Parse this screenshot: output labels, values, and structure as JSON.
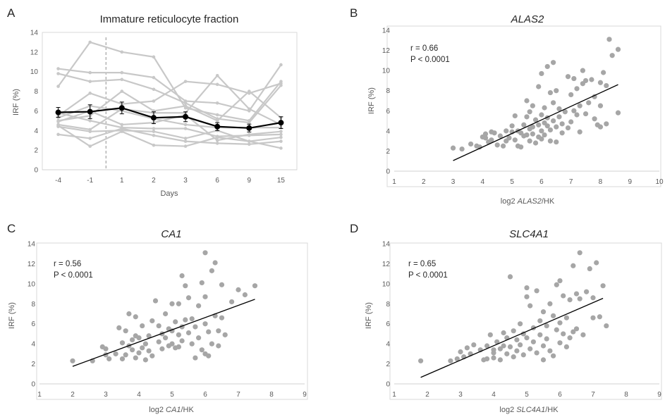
{
  "chart_data": [
    {
      "panel": "A",
      "type": "line",
      "title": "Immature reticulocyte fraction",
      "xlabel": "Days",
      "ylabel": "IRF (%)",
      "categories": [
        "-4",
        "-1",
        "1",
        "2",
        "3",
        "6",
        "9",
        "15"
      ],
      "ylim": [
        0,
        14
      ],
      "yticks": [
        0,
        2,
        4,
        6,
        8,
        10,
        12,
        14
      ],
      "vertical_dashed_line_between": [
        "-1",
        "1"
      ],
      "individual_series_color": "#c8c8c8",
      "individual_series": [
        [
          10.3,
          9.9,
          9.9,
          9.4,
          7.0,
          6.8,
          6.0,
          10.7
        ],
        [
          8.5,
          13.0,
          12.0,
          11.5,
          6.3,
          5.6,
          5.0,
          9.0
        ],
        [
          9.8,
          9.0,
          9.2,
          8.2,
          6.8,
          5.2,
          4.8,
          8.6
        ],
        [
          5.5,
          7.8,
          6.7,
          7.0,
          9.0,
          8.7,
          7.8,
          8.8
        ],
        [
          5.0,
          5.5,
          8.0,
          6.0,
          6.5,
          5.0,
          8.0,
          5.3
        ],
        [
          4.6,
          4.1,
          6.2,
          5.8,
          5.8,
          9.6,
          6.2,
          4.6
        ],
        [
          5.3,
          6.5,
          6.0,
          5.2,
          4.6,
          4.3,
          4.3,
          4.3
        ],
        [
          4.9,
          6.0,
          4.6,
          4.8,
          5.6,
          3.0,
          3.6,
          3.9
        ],
        [
          5.8,
          5.0,
          4.3,
          4.2,
          4.2,
          3.4,
          3.5,
          3.6
        ],
        [
          4.4,
          3.9,
          4.0,
          3.9,
          3.2,
          4.0,
          2.9,
          3.3
        ],
        [
          3.6,
          3.2,
          4.2,
          3.5,
          2.9,
          2.7,
          2.6,
          2.9
        ],
        [
          4.5,
          2.4,
          3.9,
          2.5,
          2.4,
          3.3,
          2.9,
          2.2
        ]
      ],
      "mean_series": {
        "color": "#000000",
        "values": [
          5.85,
          5.92,
          6.3,
          5.3,
          5.4,
          4.4,
          4.25,
          4.8
        ],
        "error": [
          0.5,
          0.7,
          0.6,
          0.6,
          0.5,
          0.4,
          0.4,
          0.6
        ]
      }
    },
    {
      "panel": "B",
      "type": "scatter",
      "title": "ALAS2",
      "title_italic": true,
      "xlabel_prefix": "log2 ",
      "xlabel_gene": "ALAS2",
      "xlabel_suffix": "/HK",
      "ylabel": "IRF (%)",
      "xlim": [
        1,
        10
      ],
      "xticks": [
        1,
        2,
        3,
        4,
        5,
        6,
        7,
        8,
        9,
        10
      ],
      "ylim": [
        0,
        14
      ],
      "yticks": [
        0,
        2,
        4,
        6,
        8,
        10,
        12,
        14
      ],
      "stat_r": "r = 0.66",
      "stat_p": "P < 0.0001",
      "point_color": "#a6a6a6",
      "fit_line": [
        [
          3.0,
          1.05
        ],
        [
          8.6,
          8.6
        ]
      ],
      "points": [
        [
          3.0,
          2.3
        ],
        [
          3.3,
          2.2
        ],
        [
          3.6,
          2.7
        ],
        [
          3.8,
          2.5
        ],
        [
          3.9,
          2.4
        ],
        [
          4.0,
          3.4
        ],
        [
          4.1,
          3.3
        ],
        [
          4.1,
          3.7
        ],
        [
          4.2,
          2.9
        ],
        [
          4.3,
          3.1
        ],
        [
          4.3,
          3.9
        ],
        [
          4.4,
          3.8
        ],
        [
          4.5,
          2.6
        ],
        [
          4.6,
          3.5
        ],
        [
          4.7,
          2.5
        ],
        [
          4.8,
          4.0
        ],
        [
          4.8,
          3.0
        ],
        [
          4.9,
          3.3
        ],
        [
          5.0,
          3.9
        ],
        [
          5.0,
          4.5
        ],
        [
          5.1,
          3.1
        ],
        [
          5.1,
          5.5
        ],
        [
          5.2,
          2.5
        ],
        [
          5.2,
          4.0
        ],
        [
          5.3,
          2.4
        ],
        [
          5.3,
          3.8
        ],
        [
          5.4,
          3.5
        ],
        [
          5.4,
          4.6
        ],
        [
          5.5,
          3.6
        ],
        [
          5.5,
          5.4
        ],
        [
          5.5,
          7.0
        ],
        [
          5.6,
          4.2
        ],
        [
          5.6,
          5.9
        ],
        [
          5.6,
          3.0
        ],
        [
          5.7,
          6.5
        ],
        [
          5.7,
          3.7
        ],
        [
          5.7,
          4.4
        ],
        [
          5.8,
          5.1
        ],
        [
          5.8,
          2.8
        ],
        [
          5.9,
          8.4
        ],
        [
          5.9,
          4.6
        ],
        [
          5.9,
          3.4
        ],
        [
          6.0,
          9.7
        ],
        [
          6.0,
          5.6
        ],
        [
          6.0,
          4.0
        ],
        [
          6.0,
          3.2
        ],
        [
          6.1,
          6.3
        ],
        [
          6.1,
          4.8
        ],
        [
          6.1,
          3.6
        ],
        [
          6.2,
          10.4
        ],
        [
          6.2,
          5.3
        ],
        [
          6.2,
          4.5
        ],
        [
          6.3,
          7.8
        ],
        [
          6.3,
          4.1
        ],
        [
          6.3,
          3.0
        ],
        [
          6.4,
          10.8
        ],
        [
          6.4,
          6.8
        ],
        [
          6.4,
          5.0
        ],
        [
          6.5,
          8.0
        ],
        [
          6.5,
          4.4
        ],
        [
          6.5,
          2.9
        ],
        [
          6.6,
          6.2
        ],
        [
          6.6,
          5.4
        ],
        [
          6.7,
          4.7
        ],
        [
          6.7,
          3.8
        ],
        [
          6.8,
          5.9
        ],
        [
          6.9,
          9.4
        ],
        [
          6.9,
          4.3
        ],
        [
          7.0,
          7.6
        ],
        [
          7.0,
          4.9
        ],
        [
          7.1,
          9.2
        ],
        [
          7.1,
          6.0
        ],
        [
          7.2,
          8.2
        ],
        [
          7.2,
          5.6
        ],
        [
          7.3,
          6.5
        ],
        [
          7.3,
          3.9
        ],
        [
          7.4,
          10.0
        ],
        [
          7.4,
          8.7
        ],
        [
          7.5,
          5.7
        ],
        [
          7.5,
          9.0
        ],
        [
          7.6,
          6.8
        ],
        [
          7.7,
          9.1
        ],
        [
          7.8,
          7.4
        ],
        [
          7.8,
          5.2
        ],
        [
          7.9,
          4.6
        ],
        [
          8.0,
          8.8
        ],
        [
          8.0,
          6.5
        ],
        [
          8.1,
          9.8
        ],
        [
          8.2,
          4.7
        ],
        [
          8.2,
          8.5
        ],
        [
          8.3,
          13.1
        ],
        [
          8.4,
          11.5
        ],
        [
          8.6,
          12.1
        ],
        [
          8.6,
          5.8
        ],
        [
          8.0,
          4.4
        ]
      ]
    },
    {
      "panel": "C",
      "type": "scatter",
      "title": "CA1",
      "title_italic": true,
      "xlabel_prefix": "log2 ",
      "xlabel_gene": "CA1",
      "xlabel_suffix": "/HK",
      "ylabel": "IRF (%)",
      "xlim": [
        1,
        9
      ],
      "xticks": [
        1,
        2,
        3,
        4,
        5,
        6,
        7,
        8,
        9
      ],
      "ylim": [
        0,
        14
      ],
      "yticks": [
        0,
        2,
        4,
        6,
        8,
        10,
        12,
        14
      ],
      "stat_r": "r = 0.56",
      "stat_p": "P < 0.0001",
      "point_color": "#a6a6a6",
      "fit_line": [
        [
          2.0,
          1.75
        ],
        [
          7.5,
          8.45
        ]
      ],
      "points": [
        [
          2.0,
          2.3
        ],
        [
          2.6,
          2.3
        ],
        [
          2.9,
          3.7
        ],
        [
          3.0,
          2.9
        ],
        [
          3.0,
          3.5
        ],
        [
          3.1,
          2.5
        ],
        [
          3.3,
          3.0
        ],
        [
          3.4,
          5.6
        ],
        [
          3.5,
          2.5
        ],
        [
          3.5,
          4.1
        ],
        [
          3.6,
          2.9
        ],
        [
          3.6,
          5.3
        ],
        [
          3.7,
          3.8
        ],
        [
          3.7,
          7.0
        ],
        [
          3.8,
          3.4
        ],
        [
          3.8,
          4.4
        ],
        [
          3.9,
          2.6
        ],
        [
          3.9,
          6.7
        ],
        [
          4.0,
          3.1
        ],
        [
          4.0,
          4.6
        ],
        [
          4.1,
          3.6
        ],
        [
          4.1,
          5.8
        ],
        [
          4.2,
          2.4
        ],
        [
          4.2,
          4.0
        ],
        [
          4.3,
          3.3
        ],
        [
          4.3,
          4.8
        ],
        [
          4.4,
          6.3
        ],
        [
          4.4,
          2.8
        ],
        [
          4.5,
          8.3
        ],
        [
          4.6,
          4.2
        ],
        [
          4.7,
          5.0
        ],
        [
          4.7,
          3.5
        ],
        [
          4.8,
          7.0
        ],
        [
          4.8,
          4.6
        ],
        [
          4.9,
          5.5
        ],
        [
          4.9,
          3.8
        ],
        [
          5.0,
          8.0
        ],
        [
          5.0,
          5.3
        ],
        [
          5.0,
          4.0
        ],
        [
          5.1,
          6.2
        ],
        [
          5.1,
          3.6
        ],
        [
          5.2,
          4.9
        ],
        [
          5.2,
          8.0
        ],
        [
          5.3,
          5.7
        ],
        [
          5.3,
          10.8
        ],
        [
          5.3,
          4.3
        ],
        [
          5.4,
          6.4
        ],
        [
          5.4,
          9.8
        ],
        [
          5.5,
          5.1
        ],
        [
          5.5,
          8.6
        ],
        [
          5.6,
          6.5
        ],
        [
          5.6,
          4.0
        ],
        [
          5.7,
          5.7
        ],
        [
          5.7,
          2.6
        ],
        [
          5.8,
          7.8
        ],
        [
          5.8,
          4.6
        ],
        [
          5.9,
          10.1
        ],
        [
          5.9,
          3.4
        ],
        [
          6.0,
          13.1
        ],
        [
          6.0,
          6.0
        ],
        [
          6.0,
          8.7
        ],
        [
          6.0,
          3.0
        ],
        [
          6.1,
          5.2
        ],
        [
          6.1,
          2.8
        ],
        [
          6.2,
          4.0
        ],
        [
          6.2,
          11.3
        ],
        [
          6.3,
          12.1
        ],
        [
          6.3,
          6.8
        ],
        [
          6.4,
          3.8
        ],
        [
          6.4,
          5.3
        ],
        [
          6.5,
          9.9
        ],
        [
          6.5,
          6.6
        ],
        [
          6.6,
          4.9
        ],
        [
          6.8,
          8.2
        ],
        [
          7.0,
          9.4
        ],
        [
          7.2,
          8.9
        ],
        [
          7.5,
          9.8
        ],
        [
          5.2,
          3.7
        ],
        [
          4.6,
          5.8
        ],
        [
          3.9,
          4.8
        ]
      ]
    },
    {
      "panel": "D",
      "type": "scatter",
      "title": "SLC4A1",
      "title_italic": true,
      "xlabel_prefix": "log2 ",
      "xlabel_gene": "SLC4A1",
      "xlabel_suffix": "/HK",
      "ylabel": "IRF (%)",
      "xlim": [
        1,
        9
      ],
      "xticks": [
        1,
        2,
        3,
        4,
        5,
        6,
        7,
        8,
        9
      ],
      "ylim": [
        0,
        14
      ],
      "yticks": [
        0,
        2,
        4,
        6,
        8,
        10,
        12,
        14
      ],
      "stat_r": "r = 0.65",
      "stat_p": "P < 0.0001",
      "point_color": "#a6a6a6",
      "fit_line": [
        [
          1.8,
          0.65
        ],
        [
          7.3,
          8.55
        ]
      ],
      "points": [
        [
          1.8,
          2.3
        ],
        [
          2.7,
          2.3
        ],
        [
          2.9,
          2.5
        ],
        [
          3.0,
          3.2
        ],
        [
          3.1,
          2.7
        ],
        [
          3.2,
          3.6
        ],
        [
          3.3,
          3.0
        ],
        [
          3.4,
          3.9
        ],
        [
          3.6,
          3.4
        ],
        [
          3.7,
          2.4
        ],
        [
          3.8,
          2.5
        ],
        [
          3.8,
          3.8
        ],
        [
          3.9,
          4.9
        ],
        [
          4.0,
          3.1
        ],
        [
          4.0,
          2.6
        ],
        [
          4.1,
          4.2
        ],
        [
          4.2,
          3.5
        ],
        [
          4.2,
          2.4
        ],
        [
          4.3,
          3.8
        ],
        [
          4.3,
          5.1
        ],
        [
          4.4,
          3.0
        ],
        [
          4.4,
          4.6
        ],
        [
          4.5,
          10.7
        ],
        [
          4.5,
          3.7
        ],
        [
          4.6,
          5.3
        ],
        [
          4.6,
          2.7
        ],
        [
          4.7,
          4.4
        ],
        [
          4.7,
          3.3
        ],
        [
          4.8,
          6.0
        ],
        [
          4.8,
          3.9
        ],
        [
          4.9,
          5.0
        ],
        [
          4.9,
          2.9
        ],
        [
          5.0,
          9.6
        ],
        [
          5.0,
          4.6
        ],
        [
          5.0,
          8.7
        ],
        [
          5.1,
          7.8
        ],
        [
          5.1,
          3.5
        ],
        [
          5.2,
          5.6
        ],
        [
          5.2,
          4.2
        ],
        [
          5.3,
          9.3
        ],
        [
          5.3,
          3.1
        ],
        [
          5.4,
          6.3
        ],
        [
          5.4,
          4.9
        ],
        [
          5.5,
          7.2
        ],
        [
          5.5,
          3.8
        ],
        [
          5.6,
          5.8
        ],
        [
          5.6,
          4.5
        ],
        [
          5.7,
          8.0
        ],
        [
          5.7,
          3.3
        ],
        [
          5.8,
          6.8
        ],
        [
          5.8,
          2.8
        ],
        [
          5.9,
          9.9
        ],
        [
          5.9,
          5.4
        ],
        [
          6.0,
          10.3
        ],
        [
          6.0,
          6.1
        ],
        [
          6.0,
          4.1
        ],
        [
          6.1,
          8.8
        ],
        [
          6.1,
          5.0
        ],
        [
          6.2,
          6.6
        ],
        [
          6.2,
          3.7
        ],
        [
          6.3,
          8.4
        ],
        [
          6.3,
          4.6
        ],
        [
          6.4,
          11.8
        ],
        [
          6.4,
          5.2
        ],
        [
          6.5,
          9.0
        ],
        [
          6.5,
          5.5
        ],
        [
          6.6,
          13.1
        ],
        [
          6.6,
          8.5
        ],
        [
          6.7,
          4.9
        ],
        [
          6.8,
          9.2
        ],
        [
          6.9,
          11.5
        ],
        [
          7.0,
          6.6
        ],
        [
          7.0,
          8.6
        ],
        [
          7.1,
          12.1
        ],
        [
          7.2,
          6.7
        ],
        [
          7.3,
          9.8
        ],
        [
          7.4,
          5.8
        ],
        [
          5.5,
          2.4
        ],
        [
          4.0,
          3.4
        ]
      ]
    }
  ]
}
